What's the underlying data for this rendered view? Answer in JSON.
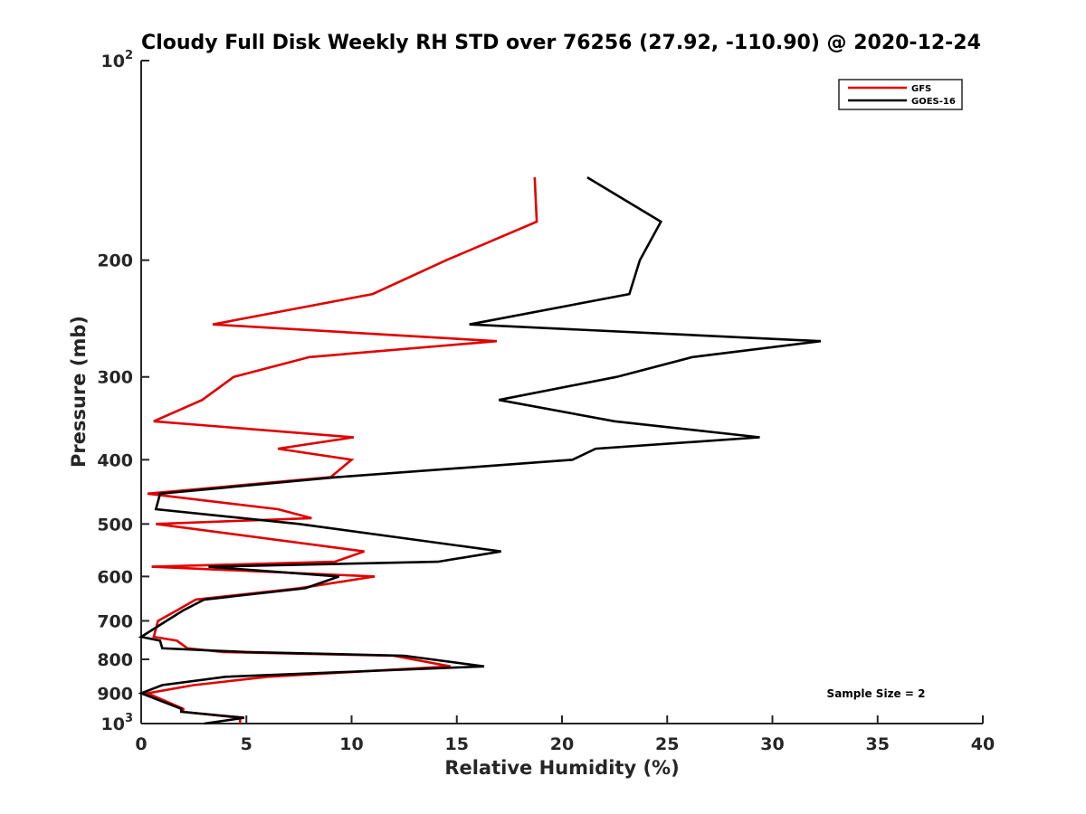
{
  "chart_data": {
    "type": "line",
    "title": "Cloudy Full Disk Weekly RH STD over 76256 (27.92, -110.90) @ 2020-12-24",
    "xlabel": "Relative Humidity (%)",
    "ylabel": "Pressure (mb)",
    "xlim": [
      0,
      40
    ],
    "ylim": [
      100,
      1000
    ],
    "yscale": "log",
    "yreversed": true,
    "x_ticks": [
      "0",
      "5",
      "10",
      "15",
      "20",
      "25",
      "30",
      "35",
      "40"
    ],
    "y_ticks": [
      {
        "value": 100,
        "base": "10",
        "exp": "2"
      },
      {
        "value": 200,
        "label": "200"
      },
      {
        "value": 300,
        "label": "300"
      },
      {
        "value": 400,
        "label": "400"
      },
      {
        "value": 500,
        "label": "500"
      },
      {
        "value": 600,
        "label": "600"
      },
      {
        "value": 700,
        "label": "700"
      },
      {
        "value": 800,
        "label": "800"
      },
      {
        "value": 900,
        "label": "900"
      },
      {
        "value": 1000,
        "base": "10",
        "exp": "3"
      }
    ],
    "legend_position": "top-right",
    "annotation": "Sample Size = 2",
    "series": [
      {
        "name": "GFS",
        "color": "#e00000",
        "points": [
          [
            18.7,
            150
          ],
          [
            18.8,
            175
          ],
          [
            14.5,
            200
          ],
          [
            11.0,
            225
          ],
          [
            3.4,
            250
          ],
          [
            16.9,
            265
          ],
          [
            8.0,
            280
          ],
          [
            4.4,
            300
          ],
          [
            2.9,
            325
          ],
          [
            0.6,
            350
          ],
          [
            10.1,
            370
          ],
          [
            6.5,
            385
          ],
          [
            10.0,
            400
          ],
          [
            9.0,
            425
          ],
          [
            0.3,
            450
          ],
          [
            6.5,
            475
          ],
          [
            8.1,
            490
          ],
          [
            0.7,
            500
          ],
          [
            10.6,
            550
          ],
          [
            9.2,
            570
          ],
          [
            0.5,
            580
          ],
          [
            11.1,
            600
          ],
          [
            7.5,
            625
          ],
          [
            2.6,
            650
          ],
          [
            1.7,
            675
          ],
          [
            0.8,
            700
          ],
          [
            0.6,
            740
          ],
          [
            1.7,
            750
          ],
          [
            2.2,
            770
          ],
          [
            3.9,
            780
          ],
          [
            12.0,
            790
          ],
          [
            14.7,
            820
          ],
          [
            6.0,
            850
          ],
          [
            2.5,
            875
          ],
          [
            0.3,
            900
          ],
          [
            2.0,
            950
          ],
          [
            2.0,
            960
          ],
          [
            4.7,
            980
          ],
          [
            4.7,
            1000
          ]
        ]
      },
      {
        "name": "GOES-16",
        "color": "#000000",
        "points": [
          [
            21.2,
            150
          ],
          [
            24.7,
            175
          ],
          [
            23.7,
            200
          ],
          [
            23.2,
            225
          ],
          [
            15.6,
            250
          ],
          [
            32.3,
            265
          ],
          [
            26.2,
            280
          ],
          [
            22.6,
            300
          ],
          [
            17.0,
            325
          ],
          [
            22.5,
            350
          ],
          [
            29.4,
            370
          ],
          [
            21.6,
            385
          ],
          [
            20.5,
            400
          ],
          [
            9.3,
            425
          ],
          [
            0.9,
            450
          ],
          [
            0.7,
            475
          ],
          [
            7.5,
            500
          ],
          [
            17.1,
            550
          ],
          [
            14.1,
            570
          ],
          [
            3.2,
            580
          ],
          [
            9.4,
            600
          ],
          [
            7.8,
            625
          ],
          [
            3.0,
            650
          ],
          [
            2.0,
            675
          ],
          [
            1.2,
            700
          ],
          [
            0.0,
            740
          ],
          [
            0.9,
            750
          ],
          [
            1.0,
            770
          ],
          [
            5.0,
            780
          ],
          [
            12.5,
            790
          ],
          [
            16.3,
            820
          ],
          [
            4.0,
            850
          ],
          [
            1.0,
            875
          ],
          [
            0.0,
            900
          ],
          [
            1.9,
            950
          ],
          [
            1.9,
            960
          ],
          [
            4.9,
            980
          ],
          [
            3.0,
            1000
          ]
        ]
      }
    ]
  }
}
